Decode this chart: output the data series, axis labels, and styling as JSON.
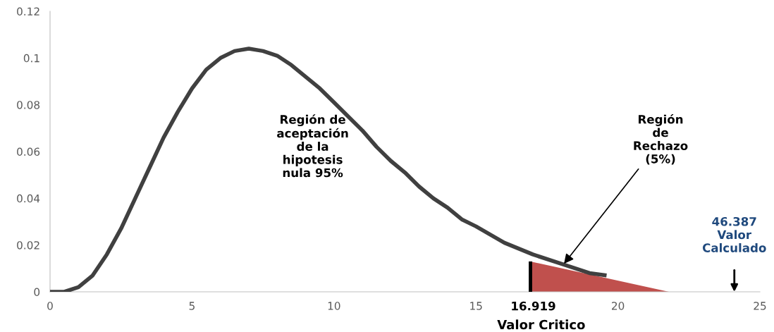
{
  "chart_data": {
    "type": "line",
    "series": [
      {
        "color": "#404040",
        "x": [
          0,
          0.5,
          1,
          1.5,
          2,
          2.5,
          3,
          3.5,
          4,
          4.5,
          5,
          5.5,
          6,
          6.5,
          7,
          7.5,
          8,
          8.5,
          9,
          9.5,
          10,
          10.5,
          11,
          11.5,
          12,
          12.5,
          13,
          13.5,
          14,
          14.5,
          15,
          16,
          17,
          18,
          19,
          19.6
        ],
        "values": [
          0,
          0,
          0.002,
          0.007,
          0.016,
          0.027,
          0.04,
          0.053,
          0.066,
          0.077,
          0.087,
          0.095,
          0.1,
          0.103,
          0.104,
          0.103,
          0.101,
          0.097,
          0.092,
          0.087,
          0.081,
          0.075,
          0.069,
          0.062,
          0.056,
          0.051,
          0.045,
          0.04,
          0.036,
          0.031,
          0.028,
          0.021,
          0.016,
          0.012,
          0.008,
          0.007
        ]
      },
      {
        "type": "area",
        "color": "#c0504d",
        "x": [
          16.919,
          21.8
        ],
        "values": [
          0.013,
          0
        ]
      },
      {
        "type": "line",
        "color": "#000000",
        "x": [
          16.919,
          16.919
        ],
        "values": [
          0,
          0.013
        ]
      }
    ],
    "xlim": [
      0,
      25
    ],
    "xticks": [
      0,
      5,
      10,
      15,
      20,
      25
    ],
    "ylim": [
      0,
      0.12
    ],
    "yticks": [
      0,
      0.02,
      0.04,
      0.06,
      0.08,
      0.1,
      0.12
    ],
    "grid": false,
    "annotations": [
      "Región de\naceptación\nde la\nhipotesis\nnula 95%",
      {
        "text": "Región\nde\nRechazo\n(5%)",
        "x": 18.1,
        "y": 0.012
      },
      {
        "text": "16.919",
        "x": 16.919,
        "y": 0
      },
      "Valor Critico",
      "46.387\nValor\nCalculado"
    ]
  }
}
